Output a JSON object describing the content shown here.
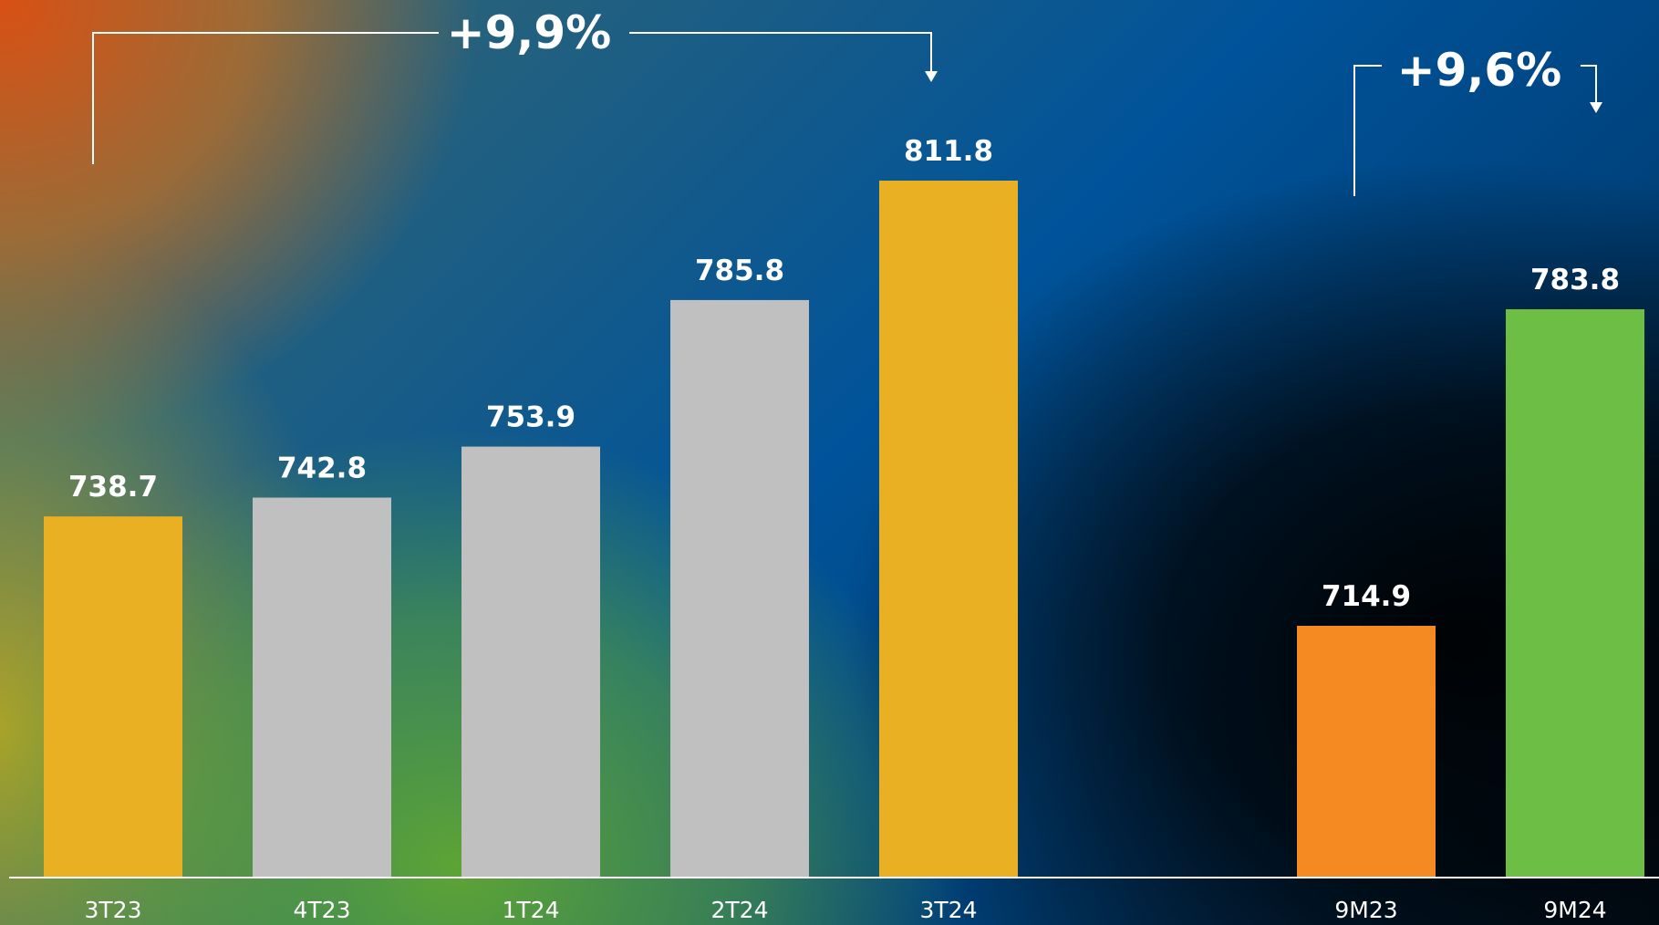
{
  "chart_data": {
    "type": "bar",
    "categories": [
      "3T23",
      "4T23",
      "1T24",
      "2T24",
      "3T24",
      "9M23",
      "9M24"
    ],
    "values": [
      738.7,
      742.8,
      753.9,
      785.8,
      811.8,
      714.9,
      783.8
    ],
    "value_labels": [
      "738.7",
      "742.8",
      "753.9",
      "785.8",
      "811.8",
      "714.9",
      "783.8"
    ],
    "bar_colors": [
      "#EAB024",
      "#C0C0C0",
      "#C0C0C0",
      "#C0C0C0",
      "#EAB024",
      "#F48A21",
      "#6DBE45"
    ],
    "annotations": [
      {
        "text": "+9,9%",
        "from": "3T23",
        "to": "3T24"
      },
      {
        "text": "+9,6%",
        "from": "9M23",
        "to": "9M24"
      }
    ],
    "title": "",
    "xlabel": "",
    "ylabel": "",
    "grid": false,
    "legend": "none"
  }
}
